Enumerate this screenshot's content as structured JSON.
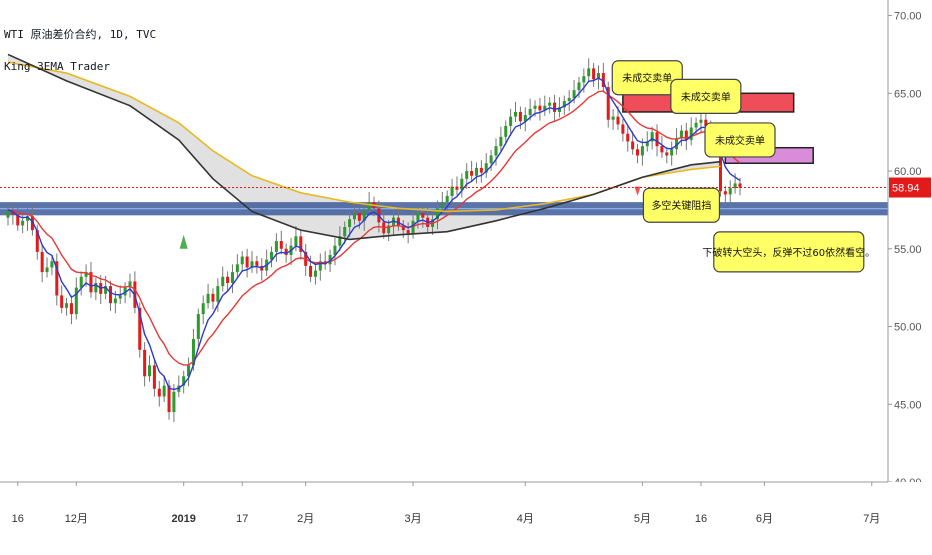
{
  "header": {
    "symbol_line": "WTI 原油差价合约, 1D, TVC",
    "indicator_line": "King 3EMA Trader"
  },
  "colors": {
    "up": "#2e9a2e",
    "down": "#e31a1a",
    "ema_fast": "#2b3ccc",
    "ema_mid": "#e53935",
    "ema_slow": "#333333",
    "ema_gold": "#e8b923",
    "price_line": "#e31a1a",
    "support_band": "#3d5a99",
    "callout_fill": "#ffff66",
    "callout_stroke": "#444444",
    "res_zone1": "#ef4d5a",
    "res_zone2": "#d98cd9",
    "fill_cloud": "#d9d9d9"
  },
  "chart_data": {
    "type": "candlestick",
    "title": "WTI 原油差价合约, 1D, TVC",
    "ylim": [
      40,
      71
    ],
    "yticks": [
      {
        "value": 70,
        "label": "70.00"
      },
      {
        "value": 65,
        "label": "65.00"
      },
      {
        "value": 60,
        "label": "60.00"
      },
      {
        "value": 55,
        "label": "55.00"
      },
      {
        "value": 50,
        "label": "50.00"
      },
      {
        "value": 45,
        "label": "45.00"
      },
      {
        "value": 40,
        "label": "40.00"
      }
    ],
    "xlim": [
      0,
      175
    ],
    "xticks": [
      {
        "x": 2,
        "label": "16"
      },
      {
        "x": 14,
        "label": "12月"
      },
      {
        "x": 36,
        "label": "2019"
      },
      {
        "x": 48,
        "label": "17"
      },
      {
        "x": 61,
        "label": "2月"
      },
      {
        "x": 83,
        "label": "3月"
      },
      {
        "x": 106,
        "label": "4月"
      },
      {
        "x": 130,
        "label": "5月"
      },
      {
        "x": 142,
        "label": "16"
      },
      {
        "x": 155,
        "label": "6月"
      },
      {
        "x": 177,
        "label": "7月"
      }
    ],
    "current_price": {
      "value": 58.94,
      "label": "58.94"
    },
    "close": [
      57.5,
      57.2,
      56.5,
      56.8,
      57.1,
      56.2,
      54.8,
      53.5,
      53.8,
      54.2,
      52.0,
      51.2,
      51.5,
      50.8,
      52.5,
      53.2,
      53.5,
      52.2,
      52.8,
      52.1,
      52.6,
      51.5,
      51.8,
      52.0,
      52.5,
      52.9,
      51.2,
      48.5,
      46.8,
      47.5,
      46.0,
      45.5,
      46.2,
      44.5,
      45.8,
      46.2,
      46.8,
      47.5,
      49.2,
      50.8,
      51.5,
      52.1,
      51.6,
      52.6,
      53.2,
      52.8,
      53.5,
      54.0,
      54.5,
      53.8,
      54.2,
      53.9,
      53.6,
      54.3,
      54.8,
      55.5,
      55.0,
      54.6,
      55.2,
      55.8,
      54.8,
      53.9,
      53.2,
      53.6,
      54.2,
      54.0,
      54.6,
      55.2,
      55.8,
      56.4,
      56.9,
      57.3,
      56.8,
      57.5,
      58.0,
      57.6,
      56.7,
      56.0,
      56.5,
      57.0,
      56.5,
      56.2,
      56.0,
      56.8,
      57.3,
      57.0,
      56.4,
      56.9,
      57.6,
      58.0,
      58.4,
      59.0,
      58.8,
      59.5,
      60.0,
      59.7,
      60.2,
      59.9,
      60.5,
      61.0,
      61.6,
      62.2,
      62.9,
      63.5,
      63.8,
      63.2,
      63.6,
      64.0,
      64.2,
      63.9,
      64.2,
      64.4,
      63.8,
      64.1,
      64.5,
      64.7,
      65.2,
      65.7,
      66.1,
      66.6,
      65.9,
      66.3,
      65.4,
      63.3,
      63.5,
      63.0,
      62.4,
      61.9,
      61.4,
      61.0,
      61.6,
      61.9,
      62.5,
      61.6,
      61.2,
      61.0,
      61.4,
      62.1,
      62.6,
      62.0,
      62.8,
      63.1,
      63.3,
      62.9,
      62.6,
      61.6,
      58.7,
      58.5,
      58.9,
      59.2,
      58.94
    ],
    "open": [
      57.0,
      57.5,
      57.2,
      56.5,
      56.8,
      57.1,
      56.2,
      54.8,
      53.5,
      53.8,
      54.2,
      52.0,
      51.2,
      51.5,
      50.8,
      52.5,
      53.2,
      53.5,
      52.2,
      52.8,
      52.1,
      52.6,
      51.5,
      51.8,
      52.0,
      52.5,
      52.9,
      51.2,
      48.5,
      46.8,
      47.5,
      46.0,
      45.5,
      46.2,
      44.5,
      45.8,
      46.2,
      46.8,
      47.5,
      49.2,
      50.8,
      51.5,
      52.1,
      51.6,
      52.6,
      53.2,
      52.8,
      53.5,
      54.0,
      54.5,
      53.8,
      54.2,
      53.9,
      53.6,
      54.3,
      54.8,
      55.5,
      55.0,
      54.6,
      55.2,
      55.8,
      54.8,
      53.9,
      53.2,
      53.6,
      54.2,
      54.0,
      54.6,
      55.2,
      55.8,
      56.4,
      56.9,
      57.3,
      56.8,
      57.5,
      58.0,
      57.6,
      56.7,
      56.0,
      56.5,
      57.0,
      56.5,
      56.2,
      56.0,
      56.8,
      57.3,
      57.0,
      56.4,
      56.9,
      57.6,
      58.0,
      58.4,
      59.0,
      58.8,
      59.5,
      60.0,
      59.7,
      60.2,
      59.9,
      60.5,
      61.0,
      61.6,
      62.2,
      62.9,
      63.5,
      63.8,
      63.2,
      63.6,
      64.0,
      64.2,
      63.9,
      64.2,
      64.4,
      63.8,
      64.1,
      64.5,
      64.7,
      65.2,
      65.7,
      66.1,
      66.6,
      65.9,
      66.3,
      65.4,
      63.3,
      63.5,
      63.0,
      62.4,
      61.9,
      61.4,
      61.0,
      61.6,
      61.9,
      62.5,
      61.6,
      61.2,
      61.0,
      61.4,
      62.1,
      62.6,
      62.0,
      62.8,
      63.1,
      63.3,
      62.9,
      62.6,
      61.6,
      58.7,
      58.5,
      58.9,
      59.2
    ],
    "series": [
      {
        "values_source": "ema5 of close"
      },
      {
        "values_source": "ema13 of close"
      }
    ],
    "ema_slow": [
      [
        0,
        67.5
      ],
      [
        12,
        65.8
      ],
      [
        25,
        64.2
      ],
      [
        35,
        62.0
      ],
      [
        42,
        59.5
      ],
      [
        50,
        57.4
      ],
      [
        60,
        56.2
      ],
      [
        70,
        55.6
      ],
      [
        80,
        55.9
      ],
      [
        90,
        56.1
      ],
      [
        100,
        56.8
      ],
      [
        110,
        57.6
      ],
      [
        120,
        58.5
      ],
      [
        130,
        59.6
      ],
      [
        140,
        60.4
      ],
      [
        146,
        60.6
      ]
    ],
    "ema_gold": [
      [
        0,
        67.0
      ],
      [
        12,
        66.3
      ],
      [
        25,
        64.8
      ],
      [
        35,
        63.1
      ],
      [
        42,
        61.3
      ],
      [
        50,
        59.7
      ],
      [
        60,
        58.6
      ],
      [
        70,
        58.0
      ],
      [
        80,
        57.6
      ],
      [
        90,
        57.4
      ],
      [
        100,
        57.5
      ],
      [
        110,
        57.9
      ],
      [
        120,
        58.5
      ],
      [
        130,
        59.6
      ],
      [
        140,
        60.1
      ],
      [
        146,
        60.3
      ]
    ],
    "support_band": [
      57.15,
      58.0
    ],
    "resistance_zones": [
      {
        "x0": 126,
        "x1": 161,
        "y0": 63.8,
        "y1": 65.0
      },
      {
        "x0": 147,
        "x1": 165,
        "y0": 60.5,
        "y1": 61.5
      }
    ],
    "annotations": [
      {
        "text": "未成交卖单",
        "x": 131,
        "y": 66.0
      },
      {
        "text": "未成交卖单",
        "x": 143,
        "y": 64.8
      },
      {
        "text": "未成交卖单",
        "x": 150,
        "y": 62.0
      },
      {
        "text": "多空关键阻挡",
        "x": 138,
        "y": 57.8
      },
      {
        "text": "下破转大空头，反弹不过60依然看空。",
        "x": 160,
        "y": 54.8
      }
    ]
  }
}
